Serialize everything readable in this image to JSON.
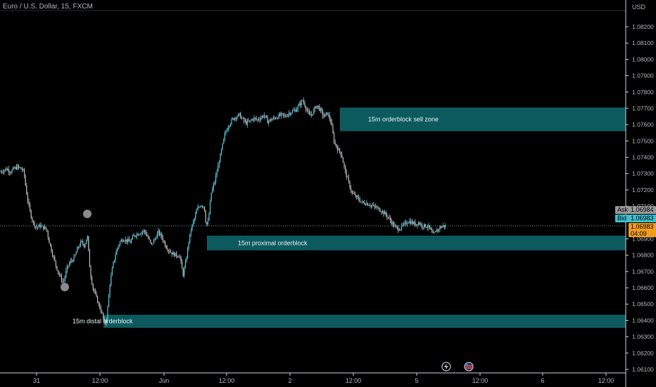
{
  "header": {
    "title": "Euro / U.S. Dollar, 15, FXCM"
  },
  "price_axis": {
    "currency": "USD",
    "ticks": [
      "1.08200",
      "1.08100",
      "1.08000",
      "1.07900",
      "1.07800",
      "1.07700",
      "1.07600",
      "1.07500",
      "1.07400",
      "1.07300",
      "1.07200",
      "1.07100",
      "1.06900",
      "1.06800",
      "1.06700",
      "1.06600",
      "1.06500",
      "1.06400",
      "1.06300",
      "1.06200",
      "1.06100"
    ],
    "ask_label": "Ask",
    "ask_value": "1.06984",
    "bid_label": "Bid",
    "bid_value": "1.06983",
    "last_value": "1.06983",
    "countdown": "04:09"
  },
  "time_axis": {
    "ticks": [
      "31",
      "12:00",
      "Jun",
      "12:00",
      "2",
      "12:00",
      "5",
      "12:00",
      "6",
      "12:00"
    ]
  },
  "colors": {
    "background": "#000000",
    "candle": "#5fc8e0",
    "wick": "#c0c0c0",
    "zone": "#0c5a5e",
    "last_price": "#f29c1c",
    "ask_badge": "#9a9a9a",
    "bid_badge": "#3fbfcf"
  },
  "icons": [
    "lightning-icon",
    "us-flag-icon"
  ],
  "chart_data": {
    "type": "candlestick",
    "symbol": "Euro / U.S. Dollar, 15, FXCM",
    "ylim": [
      1.0605,
      1.083
    ],
    "y_scale": "linear",
    "grid": false,
    "series": [
      {
        "close_path": [
          [
            0,
            1.0731
          ],
          [
            5,
            1.0732
          ],
          [
            10,
            1.0733
          ],
          [
            15,
            1.0731
          ],
          [
            20,
            1.0733
          ],
          [
            25,
            1.0734
          ],
          [
            30,
            1.0733
          ],
          [
            34,
            1.0731
          ],
          [
            37,
            1.072
          ],
          [
            40,
            1.0712
          ],
          [
            43,
            1.0706
          ],
          [
            47,
            1.07
          ],
          [
            52,
            1.0697
          ],
          [
            57,
            1.0698
          ],
          [
            62,
            1.0697
          ],
          [
            66,
            1.0696
          ],
          [
            70,
            1.0688
          ],
          [
            75,
            1.068
          ],
          [
            80,
            1.0673
          ],
          [
            85,
            1.0667
          ],
          [
            90,
            1.0663
          ],
          [
            95,
            1.0672
          ],
          [
            100,
            1.0676
          ],
          [
            105,
            1.0678
          ],
          [
            110,
            1.0684
          ],
          [
            115,
            1.0688
          ],
          [
            120,
            1.0686
          ],
          [
            124,
            1.0692
          ],
          [
            128,
            1.067
          ],
          [
            132,
            1.066
          ],
          [
            136,
            1.0655
          ],
          [
            140,
            1.065
          ],
          [
            145,
            1.0644
          ],
          [
            149,
            1.0637
          ],
          [
            152,
            1.0643
          ],
          [
            156,
            1.0662
          ],
          [
            160,
            1.0673
          ],
          [
            165,
            1.0682
          ],
          [
            170,
            1.0688
          ],
          [
            175,
            1.069
          ],
          [
            180,
            1.0689
          ],
          [
            185,
            1.0688
          ],
          [
            190,
            1.0692
          ],
          [
            195,
            1.0693
          ],
          [
            200,
            1.0694
          ],
          [
            205,
            1.0695
          ],
          [
            210,
            1.0691
          ],
          [
            215,
            1.0686
          ],
          [
            220,
            1.069
          ],
          [
            225,
            1.0694
          ],
          [
            230,
            1.0691
          ],
          [
            235,
            1.0686
          ],
          [
            240,
            1.0683
          ],
          [
            245,
            1.0681
          ],
          [
            250,
            1.068
          ],
          [
            255,
            1.068
          ],
          [
            260,
            1.0668
          ],
          [
            264,
            1.0676
          ],
          [
            268,
            1.0688
          ],
          [
            272,
            1.0697
          ],
          [
            276,
            1.0702
          ],
          [
            280,
            1.0708
          ],
          [
            285,
            1.0711
          ],
          [
            290,
            1.071
          ],
          [
            293,
            1.0698
          ],
          [
            296,
            1.0701
          ],
          [
            300,
            1.0718
          ],
          [
            305,
            1.0725
          ],
          [
            310,
            1.0735
          ],
          [
            315,
            1.0745
          ],
          [
            320,
            1.0755
          ],
          [
            325,
            1.076
          ],
          [
            330,
            1.0763
          ],
          [
            335,
            1.0765
          ],
          [
            340,
            1.0766
          ],
          [
            345,
            1.0763
          ],
          [
            350,
            1.0761
          ],
          [
            355,
            1.0762
          ],
          [
            360,
            1.0764
          ],
          [
            365,
            1.0763
          ],
          [
            370,
            1.0764
          ],
          [
            375,
            1.0766
          ],
          [
            380,
            1.0762
          ],
          [
            385,
            1.0763
          ],
          [
            390,
            1.0764
          ],
          [
            395,
            1.0765
          ],
          [
            400,
            1.0766
          ],
          [
            405,
            1.0765
          ],
          [
            410,
            1.0767
          ],
          [
            415,
            1.0768
          ],
          [
            420,
            1.0769
          ],
          [
            425,
            1.0772
          ],
          [
            430,
            1.0775
          ],
          [
            435,
            1.077
          ],
          [
            440,
            1.0765
          ],
          [
            445,
            1.0768
          ],
          [
            450,
            1.0772
          ],
          [
            455,
            1.0769
          ],
          [
            460,
            1.0765
          ],
          [
            465,
            1.0767
          ],
          [
            470,
            1.0762
          ],
          [
            475,
            1.0749
          ],
          [
            480,
            1.0745
          ],
          [
            485,
            1.0742
          ],
          [
            490,
            1.0732
          ],
          [
            495,
            1.0725
          ],
          [
            500,
            1.0718
          ],
          [
            505,
            1.0716
          ],
          [
            510,
            1.0714
          ],
          [
            515,
            1.0712
          ],
          [
            520,
            1.0712
          ],
          [
            525,
            1.0711
          ],
          [
            530,
            1.071
          ],
          [
            535,
            1.0709
          ],
          [
            540,
            1.0708
          ],
          [
            545,
            1.0706
          ],
          [
            550,
            1.0704
          ],
          [
            555,
            1.0701
          ],
          [
            560,
            1.0698
          ],
          [
            565,
            1.0696
          ],
          [
            570,
            1.0697
          ],
          [
            575,
            1.0699
          ],
          [
            580,
            1.0701
          ],
          [
            585,
            1.07
          ],
          [
            590,
            1.0699
          ],
          [
            595,
            1.07
          ],
          [
            600,
            1.0698
          ],
          [
            605,
            1.0698
          ],
          [
            610,
            1.0697
          ],
          [
            615,
            1.0692
          ],
          [
            620,
            1.0695
          ],
          [
            625,
            1.0697
          ],
          [
            630,
            1.0698
          ],
          [
            634,
            1.0698
          ]
        ]
      }
    ],
    "zones": [
      {
        "label": "15m orderblock sell zone",
        "y_top": 1.07705,
        "y_bottom": 1.0756
      },
      {
        "label": "15m proximal orderblock",
        "y_top": 1.0692,
        "y_bottom": 1.0683
      },
      {
        "label": "15m distal orderblock",
        "y_top": 1.06435,
        "y_bottom": 1.06355
      }
    ],
    "current_price": 1.06983
  }
}
